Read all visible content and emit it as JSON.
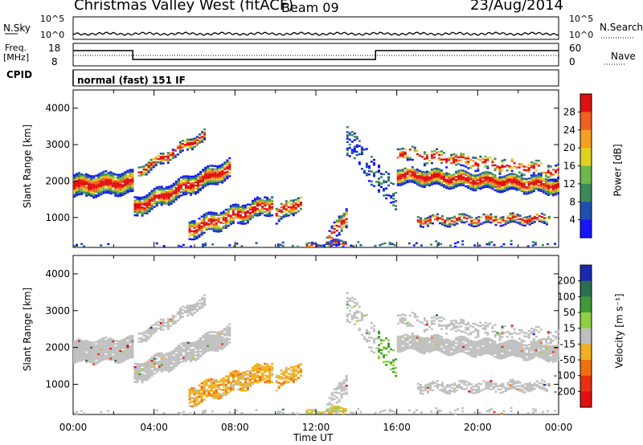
{
  "header": {
    "station": "Christmas Valley West (fitACF)",
    "beam": "Beam 09",
    "date": "23/Aug/2014"
  },
  "noise_panel": {
    "left_label": "N.Sky",
    "right_label": "N.Search",
    "ticks_left": [
      "10^5",
      "10^0"
    ],
    "ticks_right": [
      "10^5",
      "10^0"
    ]
  },
  "freq_panel": {
    "left_label_1": "Freq.",
    "left_label_2": "[MHz]",
    "right_label": "Nave",
    "ticks_left": [
      "18",
      "8"
    ],
    "ticks_right": [
      "60",
      "0"
    ]
  },
  "cpid_panel": {
    "label": "CPID",
    "mode": "normal (fast) 151 IF"
  },
  "chart_data": [
    {
      "type": "heatmap",
      "title": "Power",
      "ylabel": "Slant Range [km]",
      "xlabel": "",
      "ylim": [
        180,
        4500
      ],
      "yticks": [
        "4000",
        "3000",
        "2000",
        "1000"
      ],
      "colorbar_label": "Power [dB]",
      "colorbar_ticks": [
        "28",
        "24",
        "20",
        "16",
        "12",
        "8",
        "4"
      ],
      "colors": [
        "#1515ff",
        "#1f4fb0",
        "#3a8a5a",
        "#6cb84a",
        "#e0d020",
        "#f5a020",
        "#f06020",
        "#e01010"
      ]
    },
    {
      "type": "heatmap",
      "title": "Velocity",
      "ylabel": "Slant Range [km]",
      "xlabel": "Time UT",
      "ylim": [
        180,
        4500
      ],
      "yticks": [
        "4000",
        "3000",
        "2000",
        "1000"
      ],
      "colorbar_label": "Velocity [m s⁻¹]",
      "colorbar_ticks": [
        "200",
        "100",
        "50",
        "15",
        "-15",
        "-50",
        "-100",
        "-200"
      ],
      "colors": [
        "#1a2ab0",
        "#2a6f50",
        "#3f9a3a",
        "#90d040",
        "#c0c0c0",
        "#f0b020",
        "#f07010",
        "#e83010",
        "#e01010"
      ],
      "xticks": [
        "00:00",
        "04:00",
        "08:00",
        "12:00",
        "16:00",
        "20:00",
        "00:00"
      ]
    }
  ]
}
